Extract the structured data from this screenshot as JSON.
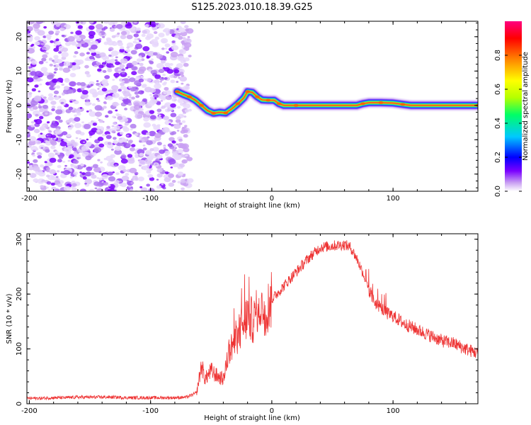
{
  "title": "S125.2023.010.18.39.G25",
  "chart_data": [
    {
      "type": "heatmap",
      "xlabel": "Height of straight line (km)",
      "ylabel": "Frequency (Hz)",
      "xlim": [
        -202,
        170
      ],
      "ylim": [
        -25,
        24.5
      ],
      "xticks": [
        -200,
        -100,
        0,
        100
      ],
      "yticks": [
        -20,
        -10,
        0,
        10,
        20
      ],
      "colorbar": {
        "label": "Normalized spectral amplitude",
        "range": [
          0,
          1
        ],
        "ticks": [
          "0.0",
          "0.2",
          "0.4",
          "0.6",
          "0.8"
        ],
        "ticks_values": [
          0.0,
          0.2,
          0.4,
          0.6,
          0.8
        ],
        "colors": [
          "#ffffff",
          "#c9a0f2",
          "#7a00ff",
          "#0000ff",
          "#00c8ff",
          "#00ff66",
          "#b4ff00",
          "#ffff00",
          "#ff8000",
          "#ff0000",
          "#ff0080"
        ]
      },
      "noise_region_x": [
        -202,
        -73
      ],
      "ridge": [
        {
          "x": -78,
          "f": 4.0
        },
        {
          "x": -73,
          "f": 3.2
        },
        {
          "x": -68,
          "f": 2.5
        },
        {
          "x": -63,
          "f": 1.5
        },
        {
          "x": -58,
          "f": 0.0
        },
        {
          "x": -53,
          "f": -1.5
        },
        {
          "x": -48,
          "f": -2.3
        },
        {
          "x": -43,
          "f": -2.0
        },
        {
          "x": -38,
          "f": -2.2
        },
        {
          "x": -33,
          "f": -1.0
        },
        {
          "x": -28,
          "f": 0.5
        },
        {
          "x": -23,
          "f": 2.2
        },
        {
          "x": -20,
          "f": 4.0
        },
        {
          "x": -16,
          "f": 3.8
        },
        {
          "x": -12,
          "f": 2.5
        },
        {
          "x": -8,
          "f": 1.6
        },
        {
          "x": -3,
          "f": 1.5
        },
        {
          "x": 2,
          "f": 1.5
        },
        {
          "x": 6,
          "f": 0.5
        },
        {
          "x": 10,
          "f": 0.0
        },
        {
          "x": 20,
          "f": 0.0
        },
        {
          "x": 70,
          "f": 0.0
        },
        {
          "x": 75,
          "f": 0.5
        },
        {
          "x": 80,
          "f": 0.8
        },
        {
          "x": 90,
          "f": 0.8
        },
        {
          "x": 100,
          "f": 0.7
        },
        {
          "x": 108,
          "f": 0.3
        },
        {
          "x": 115,
          "f": 0.0
        },
        {
          "x": 170,
          "f": 0.0
        }
      ]
    },
    {
      "type": "line",
      "xlabel": "Height of straight line (km)",
      "ylabel": "SNR (10 * v/v)",
      "xlim": [
        -202,
        170
      ],
      "ylim": [
        0,
        310
      ],
      "xticks": [
        -200,
        -100,
        0,
        100
      ],
      "yticks": [
        0,
        100,
        200,
        300
      ],
      "color": "#ee3333",
      "series": [
        {
          "x": [
            -202,
            -190,
            -180,
            -170,
            -160,
            -150,
            -140,
            -130,
            -120,
            -110,
            -100,
            -90,
            -80,
            -70,
            -62,
            -58,
            -55,
            -50,
            -45,
            -40,
            -35,
            -30,
            -25,
            -20,
            -15,
            -10,
            -5,
            0,
            10,
            20,
            30,
            40,
            50,
            60,
            65,
            70,
            75,
            80,
            85,
            90,
            95,
            100,
            110,
            120,
            130,
            140,
            150,
            160,
            170
          ],
          "y": [
            10,
            10,
            11,
            11,
            12,
            12,
            12,
            12,
            11,
            11,
            11,
            11,
            11,
            12,
            20,
            70,
            45,
            60,
            50,
            45,
            100,
            110,
            140,
            160,
            150,
            180,
            170,
            190,
            215,
            240,
            265,
            285,
            288,
            290,
            285,
            265,
            240,
            205,
            185,
            175,
            165,
            160,
            145,
            135,
            125,
            115,
            110,
            100,
            92
          ]
        }
      ]
    }
  ]
}
